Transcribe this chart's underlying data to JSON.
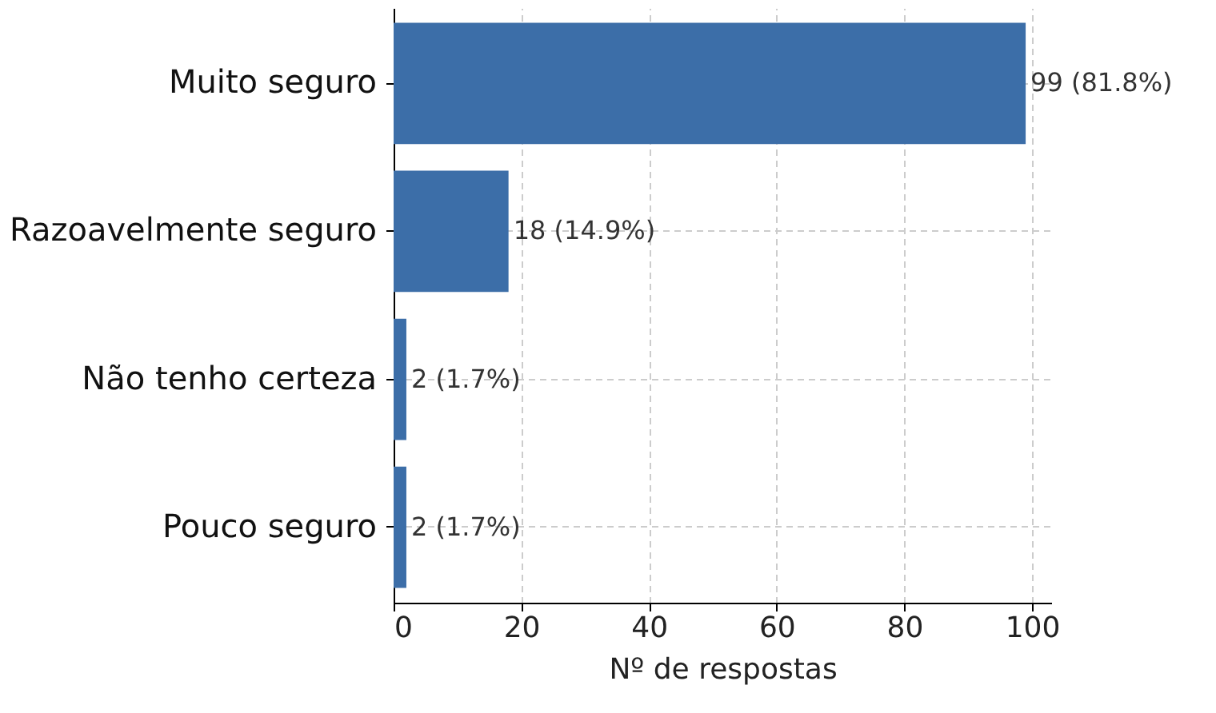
{
  "chart_data": {
    "type": "bar",
    "orientation": "horizontal",
    "categories": [
      "Muito seguro",
      "Razoavelmente seguro",
      "Não tenho certeza",
      "Pouco seguro"
    ],
    "values": [
      99,
      18,
      2,
      2
    ],
    "color": "#3c6ea8",
    "value_labels": [
      "99 (81.8%)",
      "18 (14.9%)",
      "2 (1.7%)",
      "2 (1.7%)"
    ],
    "xlabel": "Nº de respostas",
    "xlim": [
      0,
      103
    ],
    "xticks": [
      0,
      20,
      40,
      60,
      80,
      100
    ],
    "grid": true
  }
}
